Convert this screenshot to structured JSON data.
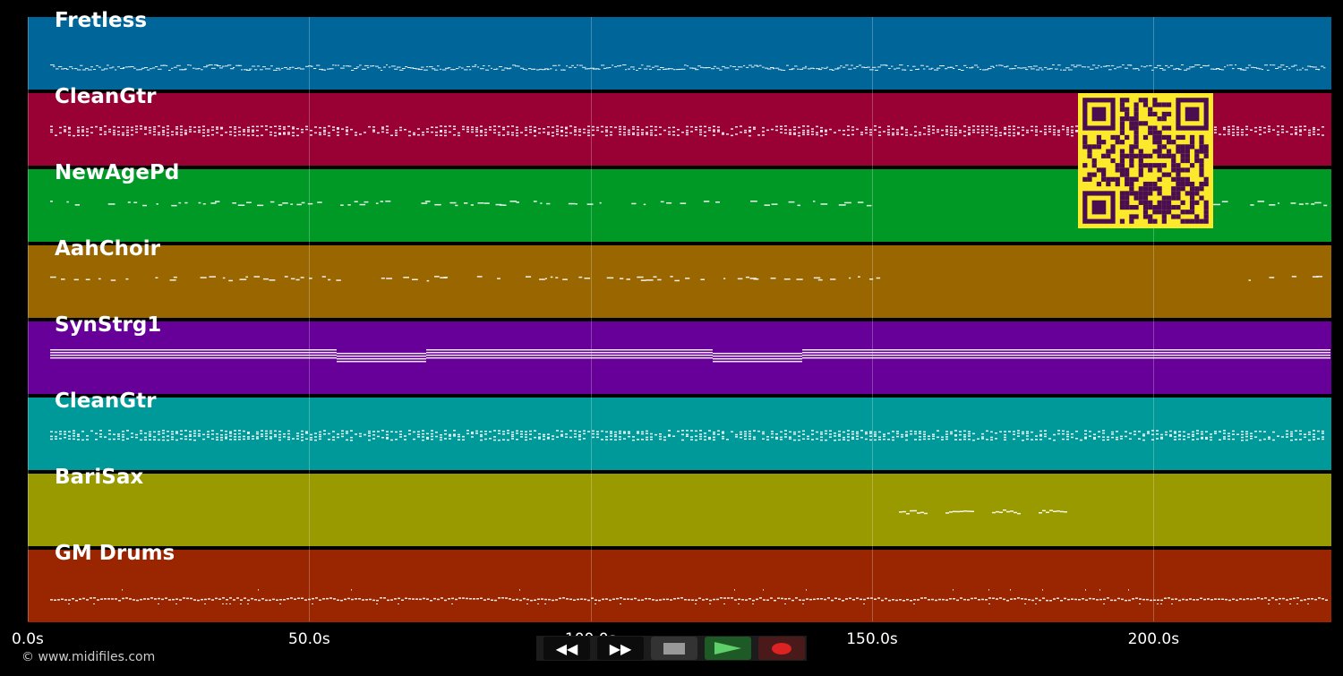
{
  "tracks": [
    {
      "name": "Fretless",
      "color": "#006699",
      "style": "bass"
    },
    {
      "name": "CleanGtr",
      "color": "#990033",
      "style": "chords"
    },
    {
      "name": "NewAgePd",
      "color": "#009926",
      "style": "sparse"
    },
    {
      "name": "AahChoir",
      "color": "#996600",
      "style": "sparse2"
    },
    {
      "name": "SynStrg1",
      "color": "#660099",
      "style": "strings"
    },
    {
      "name": "CleanGtr",
      "color": "#009999",
      "style": "chords"
    },
    {
      "name": "BariSax",
      "color": "#999900",
      "style": "sax"
    },
    {
      "name": "GM Drums",
      "color": "#992600",
      "style": "drums"
    }
  ],
  "axis": {
    "ticks": [
      "0.0s",
      "50.0s",
      "100.0s",
      "150.0s",
      "200.0s"
    ],
    "tick_seconds": [
      0,
      50,
      100,
      150,
      200
    ],
    "max_seconds": 231.6
  },
  "copyright": "© www.midifiles.com",
  "controls": {
    "rewind": "rewind-icon",
    "forward": "fast-forward-icon",
    "stop": "stop-icon",
    "play": "play-icon",
    "record": "record-icon"
  },
  "qr_colors": {
    "bg": "#fde92b",
    "fg": "#4a0d4f"
  }
}
